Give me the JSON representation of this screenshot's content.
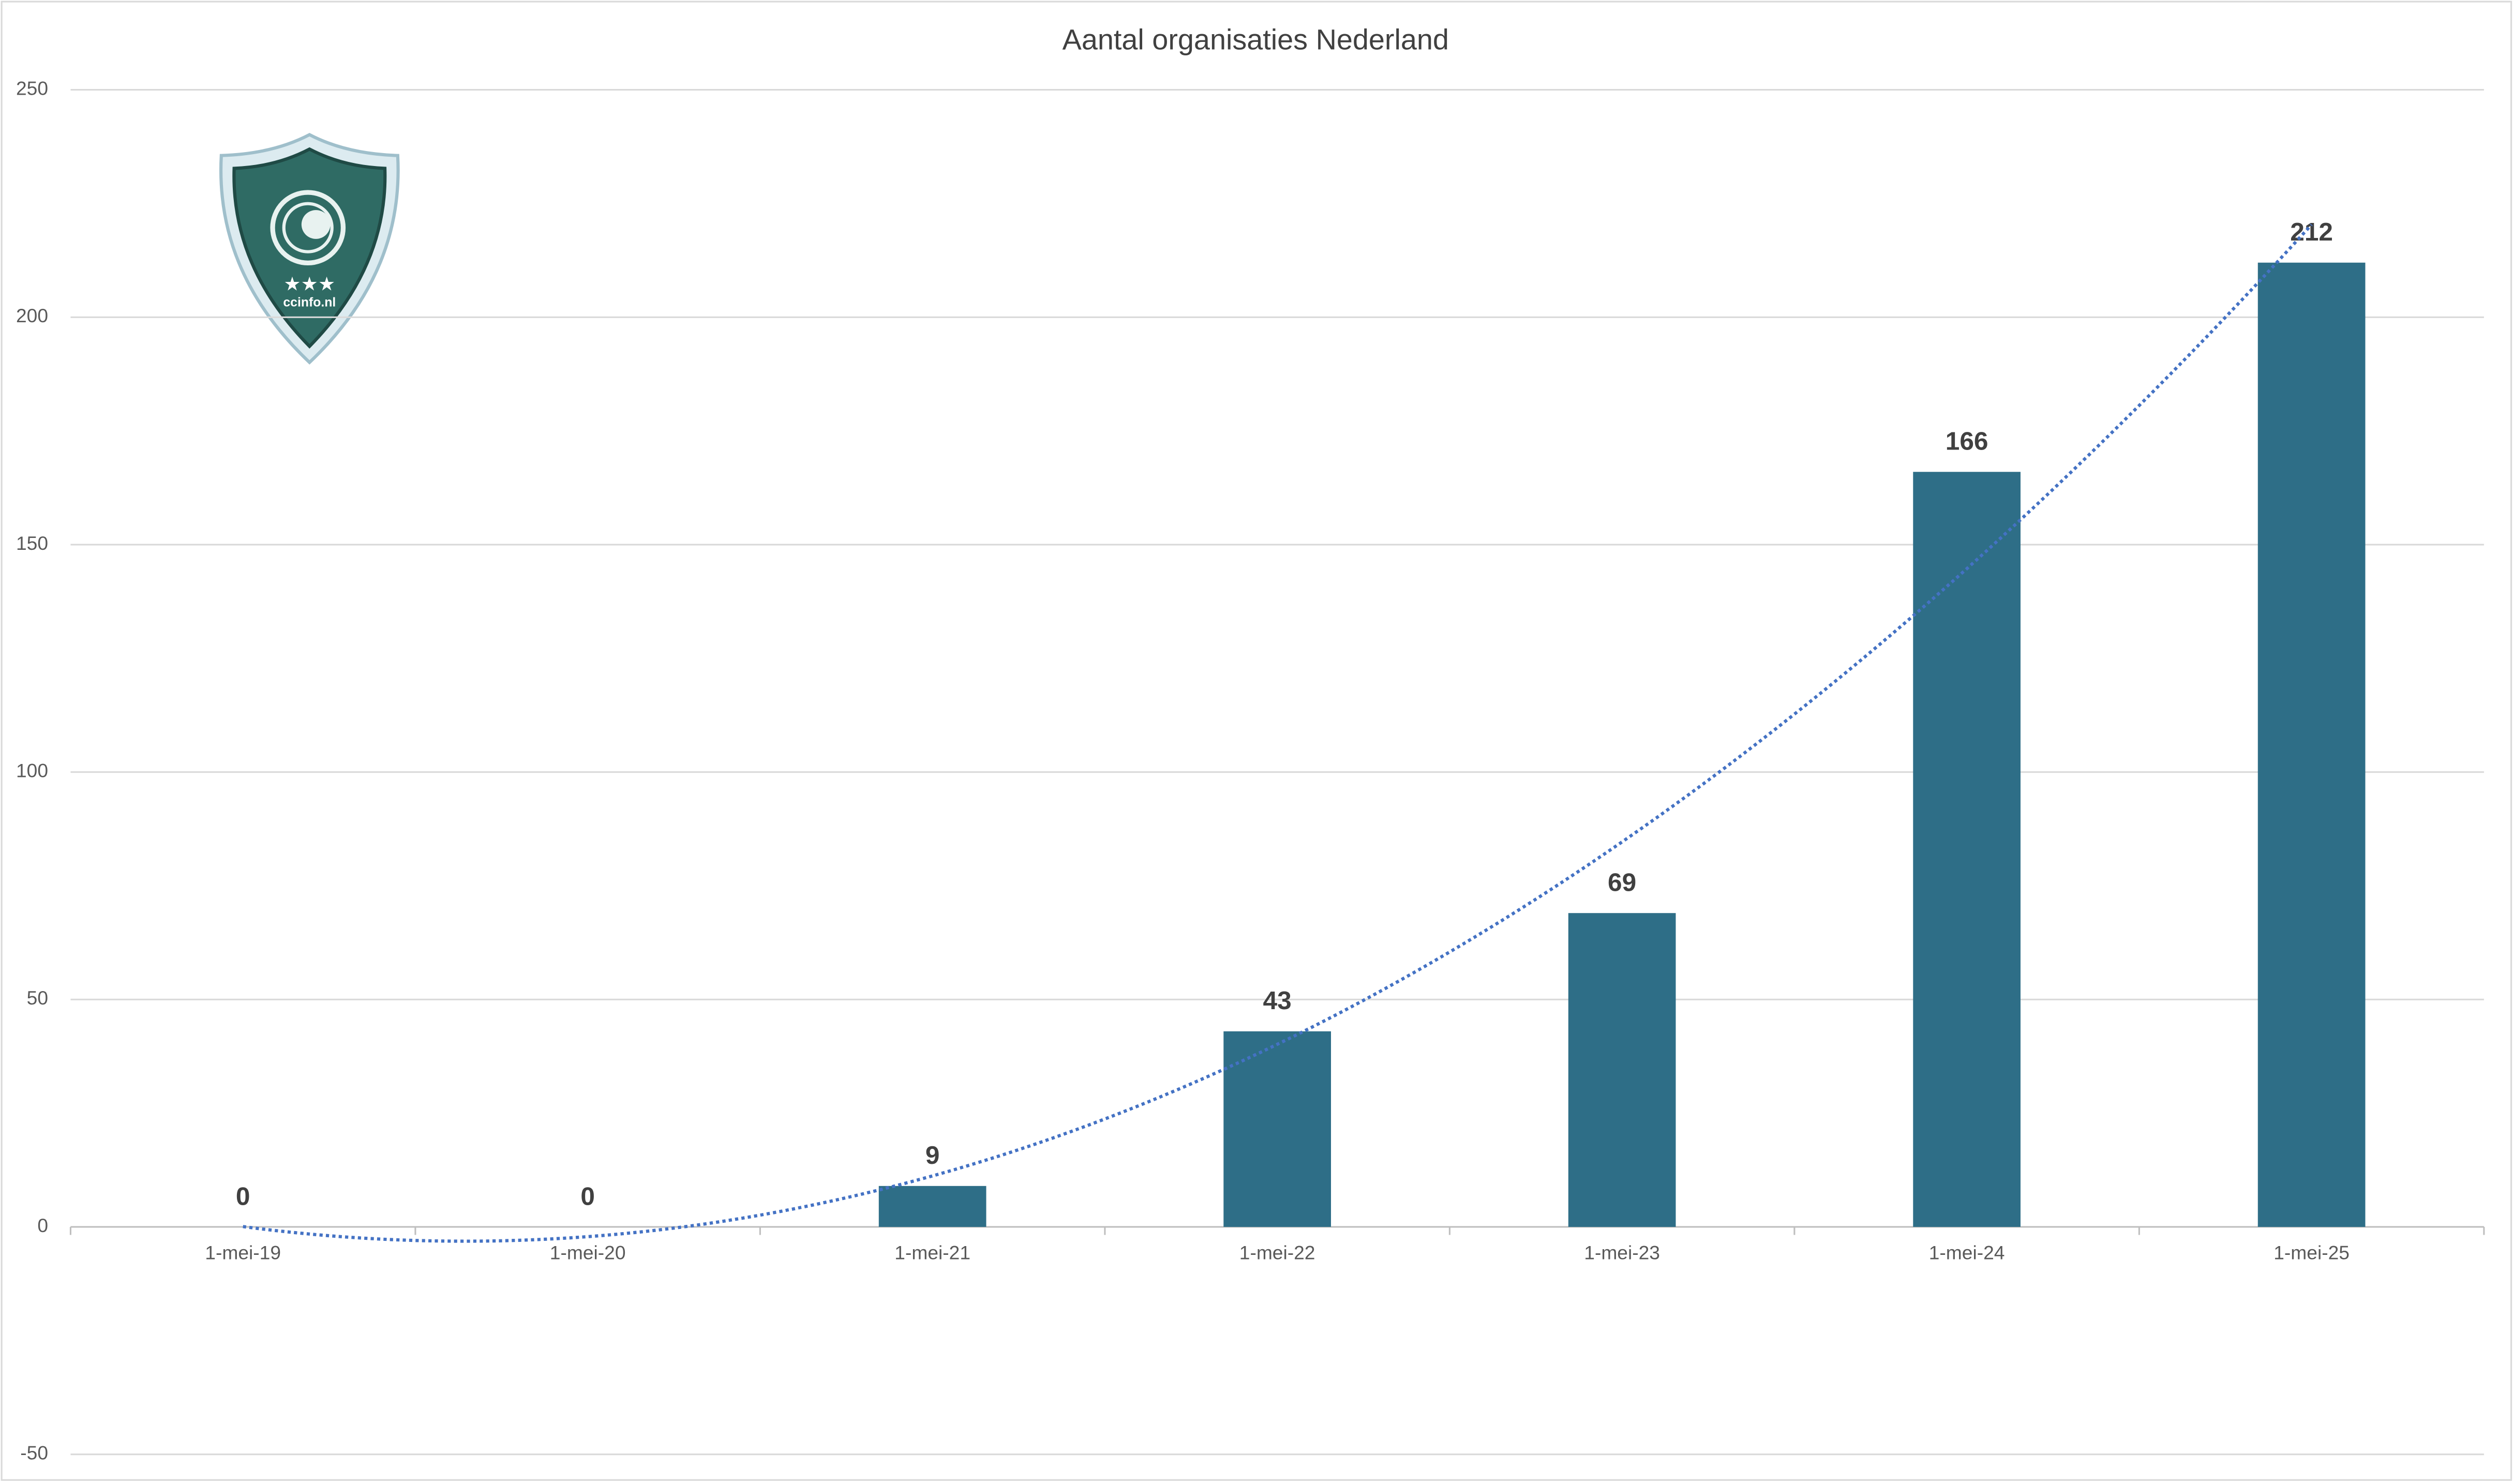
{
  "chart_data": {
    "type": "bar",
    "title": "Aantal organisaties Nederland",
    "categories": [
      "1-mei-19",
      "1-mei-20",
      "1-mei-21",
      "1-mei-22",
      "1-mei-23",
      "1-mei-24",
      "1-mei-25"
    ],
    "values": [
      0,
      0,
      9,
      43,
      69,
      166,
      212
    ],
    "color": "#2e6e87",
    "ylim": [
      -50,
      250
    ],
    "yticks": [
      -50,
      0,
      50,
      100,
      150,
      200,
      250
    ],
    "grid": true,
    "trendline": {
      "order": 2,
      "color": "#4472c4"
    }
  },
  "logo": {
    "text": "ccinfo.nl"
  }
}
